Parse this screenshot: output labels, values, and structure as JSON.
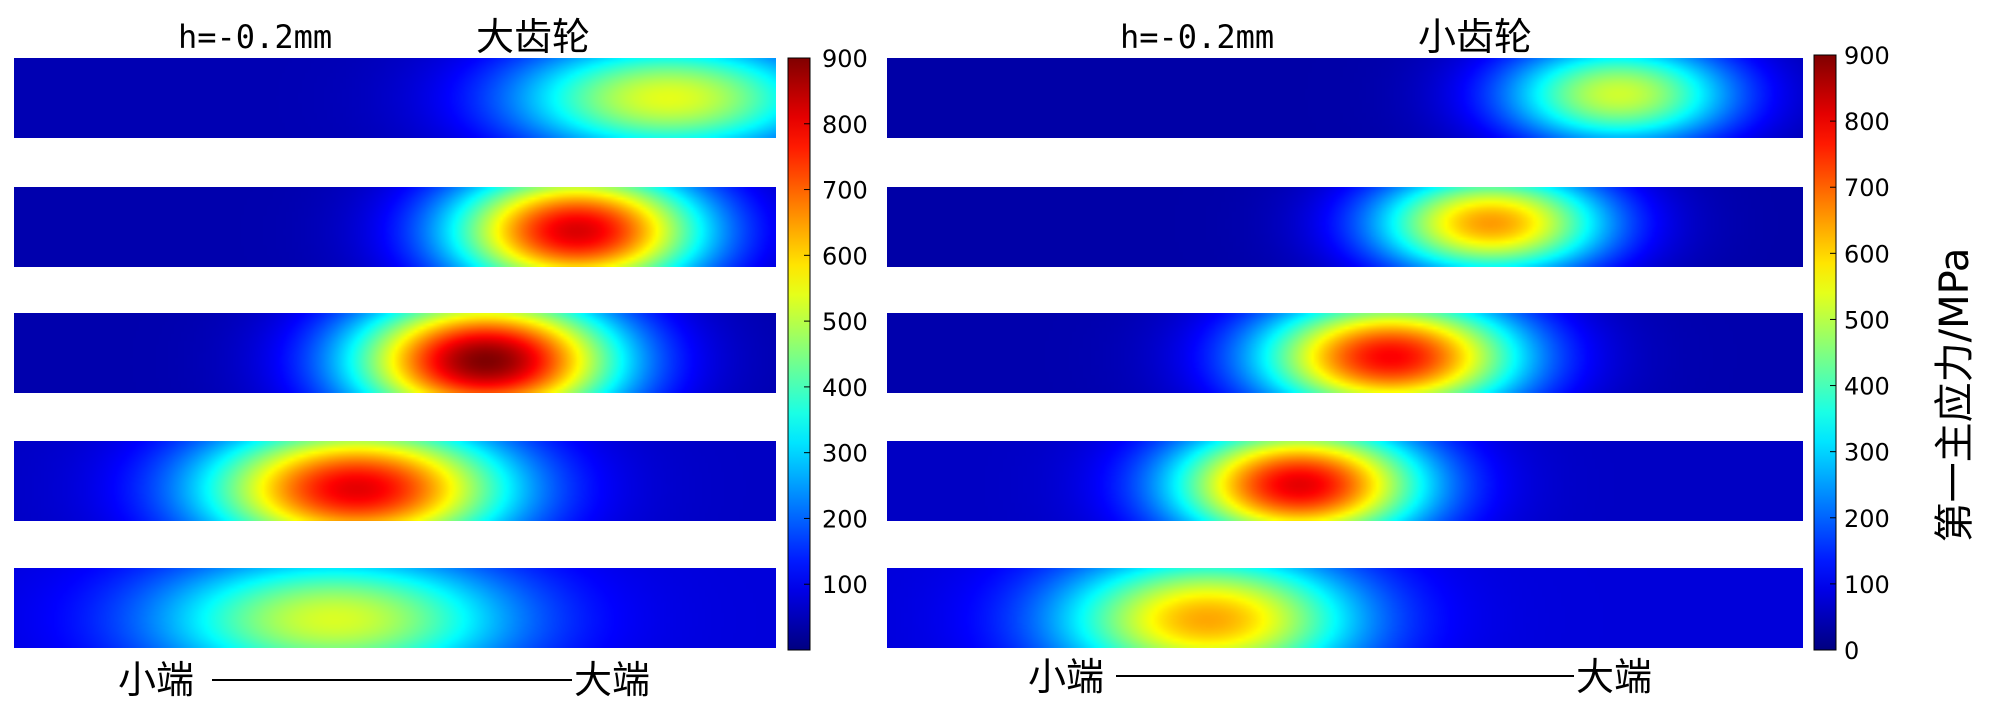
{
  "chart_data": [
    {
      "type": "heatmap",
      "title_param": "h=-0.2mm",
      "title_name": "大齿轮",
      "x_left_label": "小端",
      "x_right_label": "大端",
      "colorbar_ticks": [
        "100",
        "200",
        "300",
        "400",
        "500",
        "600",
        "700",
        "800",
        "900"
      ],
      "clim": [
        0,
        900
      ],
      "strips": [
        {
          "index": 1,
          "peaks": [
            {
              "x": 0.86,
              "y": 0.5,
              "rx": 0.26,
              "ry": 0.95,
              "v": 540
            }
          ],
          "base": 45
        },
        {
          "index": 2,
          "peaks": [
            {
              "x": 0.74,
              "y": 0.55,
              "rx": 0.21,
              "ry": 1.0,
              "v": 820
            }
          ],
          "base": 40
        },
        {
          "index": 3,
          "peaks": [
            {
              "x": 0.62,
              "y": 0.6,
              "rx": 0.22,
              "ry": 1.05,
              "v": 900
            }
          ],
          "base": 40
        },
        {
          "index": 4,
          "peaks": [
            {
              "x": 0.45,
              "y": 0.6,
              "rx": 0.25,
              "ry": 1.05,
              "v": 810
            }
          ],
          "base": 60
        },
        {
          "index": 5,
          "peaks": [
            {
              "x": 0.42,
              "y": 0.65,
              "rx": 0.29,
              "ry": 1.05,
              "v": 530
            }
          ],
          "base": 80
        }
      ]
    },
    {
      "type": "heatmap",
      "title_param": "h=-0.2mm",
      "title_name": "小齿轮",
      "x_left_label": "小端",
      "x_right_label": "大端",
      "colorbar_ticks": [
        "0",
        "100",
        "200",
        "300",
        "400",
        "500",
        "600",
        "700",
        "800",
        "900"
      ],
      "colorbar_label": "第一主应力/MPa",
      "clim": [
        0,
        900
      ],
      "strips": [
        {
          "index": 1,
          "peaks": [
            {
              "x": 0.8,
              "y": 0.45,
              "rx": 0.16,
              "ry": 0.85,
              "v": 520
            }
          ],
          "base": 35
        },
        {
          "index": 2,
          "peaks": [
            {
              "x": 0.66,
              "y": 0.45,
              "rx": 0.16,
              "ry": 0.85,
              "v": 650
            }
          ],
          "base": 35
        },
        {
          "index": 3,
          "peaks": [
            {
              "x": 0.55,
              "y": 0.55,
              "rx": 0.18,
              "ry": 0.95,
              "v": 790
            }
          ],
          "base": 40
        },
        {
          "index": 4,
          "peaks": [
            {
              "x": 0.45,
              "y": 0.55,
              "rx": 0.17,
              "ry": 0.95,
              "v": 810
            }
          ],
          "base": 60
        },
        {
          "index": 5,
          "peaks": [
            {
              "x": 0.35,
              "y": 0.65,
              "rx": 0.2,
              "ry": 1.05,
              "v": 640
            }
          ],
          "base": 80
        }
      ]
    }
  ]
}
